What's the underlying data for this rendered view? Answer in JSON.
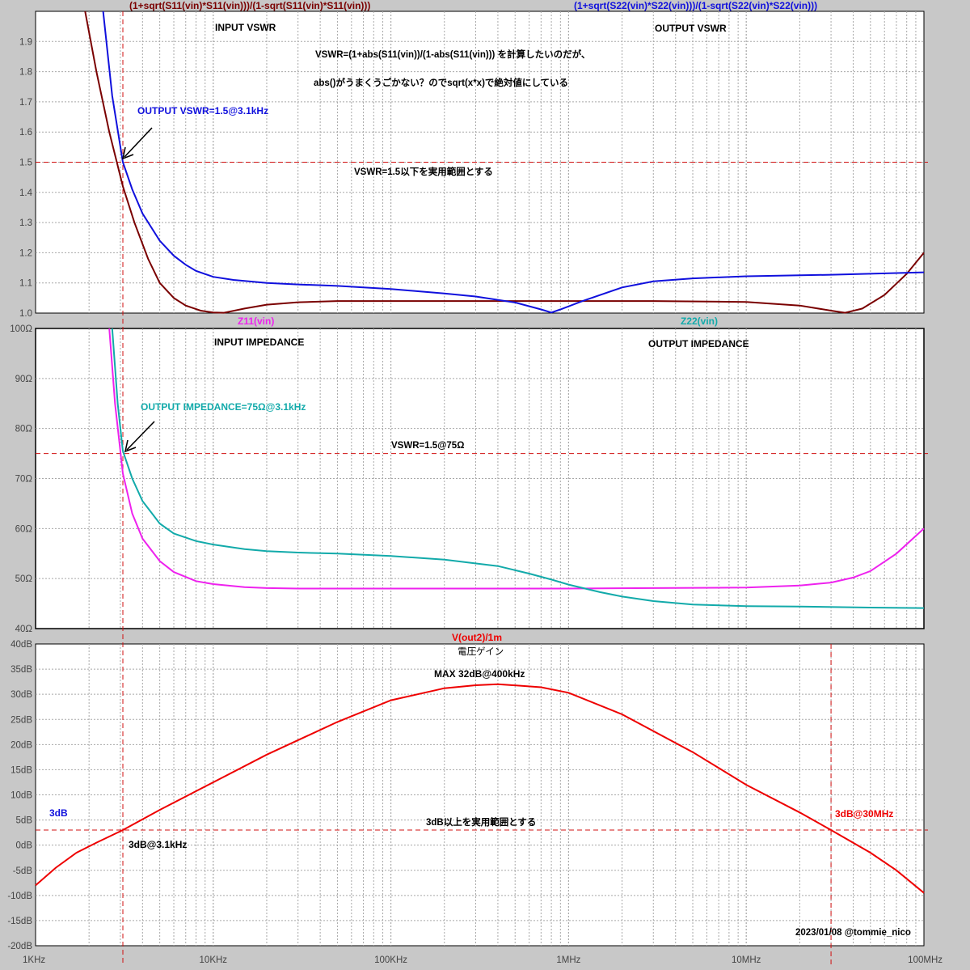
{
  "colors": {
    "background": "#c8c8c8",
    "plot_bg": "#ffffff",
    "grid": "#a8a8a8",
    "marker": "#d01010",
    "input_vswr": "#7a0000",
    "output_vswr": "#1010dd",
    "z11": "#ee22ee",
    "z22": "#12aaaa",
    "gain": "#ee0000",
    "annotation_blue": "#1010dd",
    "annotation_red": "#ee0000",
    "text": "#000000"
  },
  "x_axis": {
    "scale": "log",
    "range_hz": [
      1000,
      100000000
    ],
    "tick_labels": [
      "1KHz",
      "10KHz",
      "100KHz",
      "1MHz",
      "10MHz",
      "100MHz"
    ],
    "markers_hz": [
      3100,
      30000000
    ]
  },
  "chart_data": [
    {
      "type": "line",
      "panel": "vswr",
      "ylim": [
        1.0,
        2.0
      ],
      "grid": true,
      "y_ticks": [
        "1.0",
        "1.1",
        "1.2",
        "1.3",
        "1.4",
        "1.5",
        "1.6",
        "1.7",
        "1.8",
        "1.9"
      ],
      "y_tick_values": [
        1.0,
        1.1,
        1.2,
        1.3,
        1.4,
        1.5,
        1.6,
        1.7,
        1.8,
        1.9
      ],
      "trace_labels": {
        "left": "(1+sqrt(S11(vin)*S11(vin)))/(1-sqrt(S11(vin)*S11(vin)))",
        "right": "(1+sqrt(S22(vin)*S22(vin)))/(1-sqrt(S22(vin)*S22(vin)))"
      },
      "series": [
        {
          "name": "(1+sqrt(S11(vin)*S11(vin)))/(1-sqrt(S11(vin)*S11(vin)))",
          "color_key": "input_vswr",
          "x": [
            1900,
            2200,
            2600,
            3100,
            3600,
            4300,
            5000,
            6000,
            7000,
            8500,
            10000,
            11500,
            15000,
            20000,
            30000,
            50000,
            100000,
            300000,
            1000000,
            3000000,
            10000000,
            20000000,
            30000000,
            36000000,
            45000000,
            60000000,
            80000000,
            100000000
          ],
          "y": [
            2.0,
            1.8,
            1.6,
            1.42,
            1.3,
            1.18,
            1.1,
            1.05,
            1.025,
            1.008,
            1.002,
            1.001,
            1.015,
            1.028,
            1.036,
            1.04,
            1.04,
            1.04,
            1.04,
            1.04,
            1.037,
            1.025,
            1.008,
            1.001,
            1.015,
            1.06,
            1.13,
            1.2
          ]
        },
        {
          "name": "(1+sqrt(S22(vin)*S22(vin)))/(1-sqrt(S22(vin)*S22(vin)))",
          "color_key": "output_vswr",
          "x": [
            2400,
            2700,
            3100,
            3500,
            4000,
            5000,
            6000,
            7000,
            8000,
            10000,
            13000,
            20000,
            30000,
            50000,
            100000,
            200000,
            300000,
            500000,
            700000,
            800000,
            900000,
            1200000,
            2000000,
            3000000,
            5000000,
            10000000,
            30000000,
            100000000
          ],
          "y": [
            2.0,
            1.72,
            1.5,
            1.41,
            1.33,
            1.24,
            1.19,
            1.16,
            1.14,
            1.12,
            1.11,
            1.1,
            1.095,
            1.09,
            1.08,
            1.065,
            1.055,
            1.035,
            1.012,
            1.002,
            1.012,
            1.04,
            1.085,
            1.105,
            1.115,
            1.122,
            1.127,
            1.135
          ]
        }
      ],
      "annotations": {
        "input_title": "INPUT VSWR",
        "output_title": "OUTPUT VSWR",
        "note1": "VSWR=(1+abs(S11(vin))/(1-abs(S11(vin))) を計算したいのだが、",
        "note2": "abs()がうまくうごかない？のでsqrt(x*x)で絶対値にしている",
        "marker_label": "OUTPUT VSWR=1.5@3.1kHz",
        "ref_label": "VSWR=1.5以下を実用範囲とする"
      },
      "reference_line_y": 1.5,
      "arrow_point": {
        "x": 3100,
        "y": 1.5
      }
    },
    {
      "type": "line",
      "panel": "impedance",
      "ylim": [
        40,
        100
      ],
      "grid": true,
      "y_ticks": [
        "40Ω",
        "50Ω",
        "60Ω",
        "70Ω",
        "80Ω",
        "90Ω",
        "100Ω"
      ],
      "y_tick_values": [
        40,
        50,
        60,
        70,
        80,
        90,
        100
      ],
      "trace_labels": {
        "left": "Z11(vin)",
        "right": "Z22(vin)"
      },
      "series": [
        {
          "name": "Z11(vin)",
          "color_key": "z11",
          "x": [
            2600,
            2800,
            3100,
            3500,
            4000,
            5000,
            6000,
            8000,
            10000,
            15000,
            20000,
            30000,
            100000,
            1000000,
            10000000,
            20000000,
            30000000,
            40000000,
            50000000,
            70000000,
            100000000
          ],
          "y": [
            100,
            85,
            71,
            63,
            58,
            53.5,
            51.3,
            49.5,
            48.9,
            48.3,
            48.1,
            48,
            48,
            48,
            48.2,
            48.6,
            49.2,
            50.2,
            51.5,
            55,
            60
          ]
        },
        {
          "name": "Z22(vin)",
          "color_key": "z22",
          "x": [
            2700,
            2900,
            3100,
            3500,
            4000,
            5000,
            6000,
            8000,
            10000,
            15000,
            20000,
            30000,
            50000,
            100000,
            200000,
            400000,
            600000,
            800000,
            1000000,
            1500000,
            2000000,
            3000000,
            5000000,
            10000000,
            20000000,
            50000000,
            100000000
          ],
          "y": [
            100,
            85,
            75.5,
            70,
            65.5,
            61,
            59,
            57.5,
            56.8,
            55.9,
            55.5,
            55.2,
            55,
            54.5,
            53.8,
            52.5,
            51,
            49.8,
            48.8,
            47.3,
            46.4,
            45.5,
            44.8,
            44.5,
            44.4,
            44.2,
            44.1
          ]
        }
      ],
      "annotations": {
        "input_title": "INPUT IMPEDANCE",
        "output_title": "OUTPUT IMPEDANCE",
        "marker_label": "OUTPUT IMPEDANCE=75Ω@3.1kHz",
        "ref_label": "VSWR=1.5@75Ω"
      },
      "reference_line_y": 75,
      "arrow_point": {
        "x": 3100,
        "y": 75.5
      }
    },
    {
      "type": "line",
      "panel": "gain",
      "ylim": [
        -20,
        40
      ],
      "grid": true,
      "y_ticks": [
        "-20dB",
        "-15dB",
        "-10dB",
        "-5dB",
        "0dB",
        "5dB",
        "10dB",
        "15dB",
        "20dB",
        "25dB",
        "30dB",
        "35dB",
        "40dB"
      ],
      "y_tick_values": [
        -20,
        -15,
        -10,
        -5,
        0,
        5,
        10,
        15,
        20,
        25,
        30,
        35,
        40
      ],
      "trace_labels": {
        "left": "V(out2)/1m"
      },
      "series": [
        {
          "name": "V(out2)/1m",
          "color_key": "gain",
          "x": [
            1000,
            1300,
            1700,
            2200,
            3100,
            5000,
            10000,
            20000,
            50000,
            100000,
            200000,
            300000,
            400000,
            700000,
            1000000,
            2000000,
            5000000,
            10000000,
            20000000,
            30000000,
            50000000,
            70000000,
            100000000
          ],
          "y": [
            -8,
            -4.5,
            -1.5,
            0.5,
            3,
            7,
            12.5,
            18,
            24.5,
            28.8,
            31.2,
            31.8,
            32,
            31.4,
            30.3,
            26,
            18.5,
            12,
            6.5,
            3,
            -1.5,
            -5,
            -9.5
          ]
        }
      ],
      "annotations": {
        "title": "電圧ゲイン",
        "max_label": "MAX 32dB@400kHz",
        "ref_left": "3dB",
        "ref_label": "3dB以上を実用範囲とする",
        "marker_left_label": "3dB@3.1kHz",
        "marker_right_label": "3dB@30MHz",
        "credit": "2023/01/08 @tommie_nico"
      },
      "reference_line_y": 3
    }
  ]
}
